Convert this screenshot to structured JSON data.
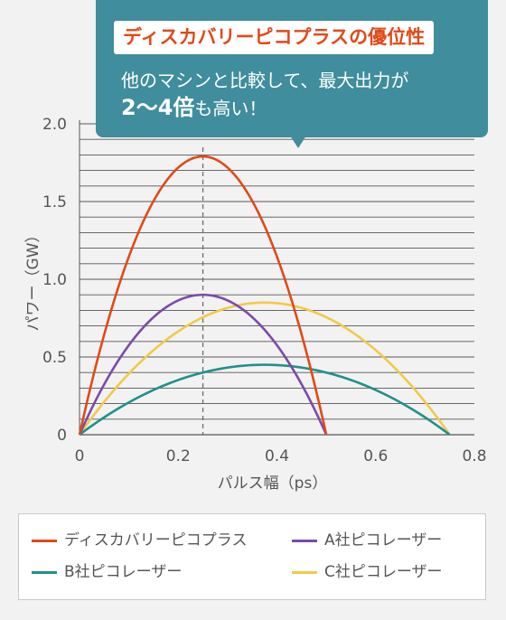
{
  "callout": {
    "title": "ディスカバリーピコプラスの優位性",
    "line1": "他のマシンと比較して、最大出力が",
    "line2_bold": "2〜4倍",
    "line2_rest": "も高い！"
  },
  "colors": {
    "background": "#f2f2f2",
    "callout_bg": "#3f8d9d",
    "title_text": "#e04a18",
    "grid": "#555555",
    "axis_text": "#555555",
    "peak_marker": "#666666"
  },
  "chart_data": {
    "type": "line",
    "xlabel": "パルス幅（ps）",
    "ylabel": "パワー（GW）",
    "xlim": [
      0,
      0.8
    ],
    "ylim": [
      0,
      2.0
    ],
    "x_ticks": [
      0,
      0.2,
      0.4,
      0.6,
      0.8
    ],
    "x_tick_labels": [
      "0",
      "0.2",
      "0.4",
      "0.6",
      "0.8"
    ],
    "y_ticks": [
      0,
      0.5,
      1.0,
      1.5,
      2.0
    ],
    "y_tick_labels": [
      "0",
      "0.5",
      "1.0",
      "1.5",
      "2.0"
    ],
    "grid": "horizontal",
    "legend_position": "bottom",
    "peak_marker_x": 0.25,
    "series": [
      {
        "name": "ディスカバリーピコプラス",
        "color": "#e04a18",
        "x": [
          0,
          0.05,
          0.1,
          0.15,
          0.2,
          0.25,
          0.3,
          0.35,
          0.4,
          0.45,
          0.5
        ],
        "y": [
          0,
          0.56,
          1.06,
          1.46,
          1.71,
          1.79,
          1.71,
          1.46,
          1.06,
          0.56,
          0
        ]
      },
      {
        "name": "A社ピコレーザー",
        "color": "#7b4ba8",
        "x": [
          0,
          0.05,
          0.1,
          0.15,
          0.2,
          0.25,
          0.3,
          0.35,
          0.4,
          0.45,
          0.5
        ],
        "y": [
          0,
          0.28,
          0.53,
          0.73,
          0.86,
          0.9,
          0.86,
          0.73,
          0.53,
          0.28,
          0
        ]
      },
      {
        "name": "B社ピコレーザー",
        "color": "#20908a",
        "x": [
          0,
          0.075,
          0.15,
          0.225,
          0.3,
          0.375,
          0.45,
          0.525,
          0.6,
          0.675,
          0.75
        ],
        "y": [
          0,
          0.14,
          0.27,
          0.37,
          0.43,
          0.45,
          0.43,
          0.37,
          0.27,
          0.14,
          0
        ]
      },
      {
        "name": "C社ピコレーザー",
        "color": "#f3c84a",
        "x": [
          0,
          0.075,
          0.15,
          0.225,
          0.3,
          0.375,
          0.45,
          0.525,
          0.6,
          0.675,
          0.75
        ],
        "y": [
          0,
          0.27,
          0.5,
          0.69,
          0.81,
          0.85,
          0.81,
          0.69,
          0.5,
          0.27,
          0
        ]
      }
    ]
  }
}
